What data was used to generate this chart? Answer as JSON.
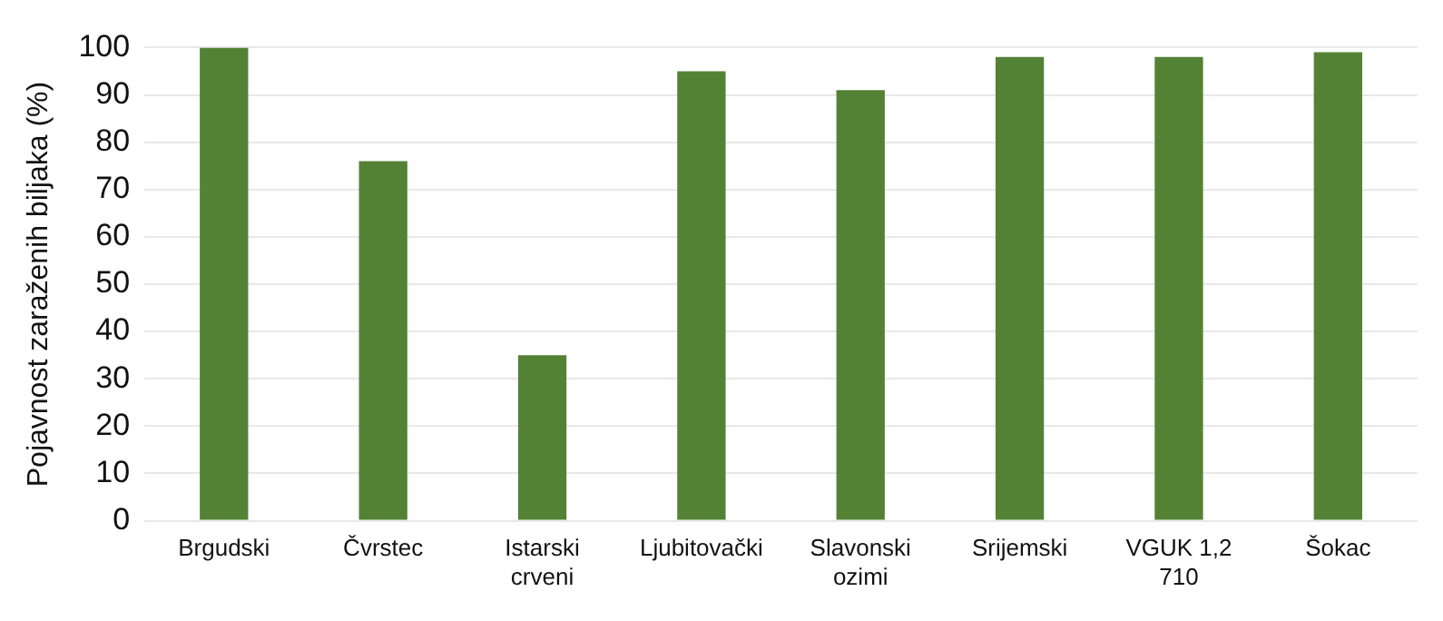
{
  "chart_data": {
    "type": "bar",
    "ylabel": "Pojavnost zaraženih biljaka (%)",
    "categories": [
      "Brgudski",
      "Čvrstec",
      "Istarski crveni",
      "Ljubitovački",
      "Slavonski ozimi",
      "Srijemski",
      "VGUK 1,2 710",
      "Šokac"
    ],
    "values": [
      100,
      76,
      35,
      95,
      91,
      98,
      98,
      99
    ],
    "color": "#548235",
    "ylim": [
      0,
      100
    ],
    "yticks": [
      0,
      10,
      20,
      30,
      40,
      50,
      60,
      70,
      80,
      90,
      100
    ],
    "grid": "y"
  }
}
